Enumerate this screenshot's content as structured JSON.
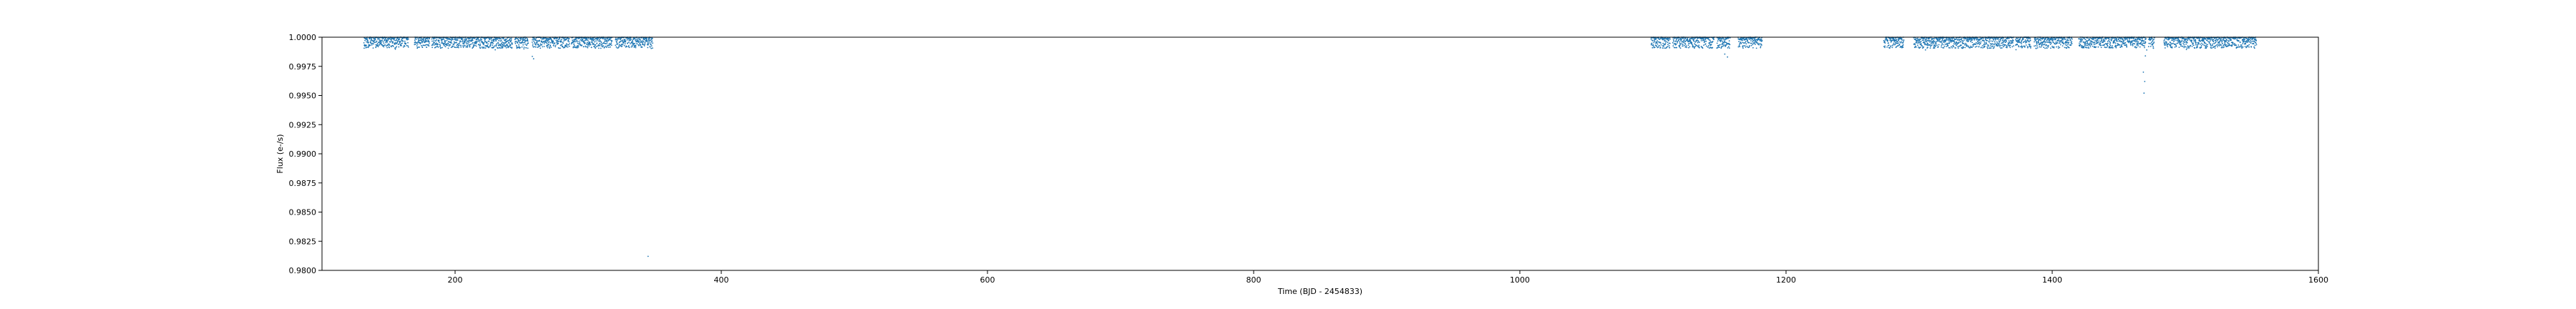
{
  "chart_data": {
    "type": "scatter",
    "title": "",
    "xlabel": "Time (BJD - 2454833)",
    "ylabel": "Flux (e-/s)",
    "xlim": [
      100,
      1600
    ],
    "ylim": [
      0.98,
      1.0
    ],
    "xticks": [
      200,
      400,
      600,
      800,
      1000,
      1200,
      1400,
      1600
    ],
    "xtick_labels": [
      "200",
      "400",
      "600",
      "800",
      "1000",
      "1200",
      "1400",
      "1600"
    ],
    "yticks": [
      0.98,
      0.9825,
      0.985,
      0.9875,
      0.99,
      0.9925,
      0.995,
      0.9975,
      1.0
    ],
    "ytick_labels": [
      "0.9800",
      "0.9825",
      "0.9850",
      "0.9875",
      "0.9900",
      "0.9925",
      "0.9950",
      "0.9975",
      "1.0000"
    ],
    "grid": false,
    "legend": "none",
    "marker_color": "#1f77b4",
    "observation_segments": [
      [
        131.5,
        165.0
      ],
      [
        169.5,
        181.0
      ],
      [
        182.5,
        243.0
      ],
      [
        245.0,
        255.0
      ],
      [
        258.0,
        286.0
      ],
      [
        287.5,
        318.0
      ],
      [
        320.5,
        348.5
      ],
      [
        1098.5,
        1113.0
      ],
      [
        1115.0,
        1146.0
      ],
      [
        1148.0,
        1158.0
      ],
      [
        1164.0,
        1182.0
      ],
      [
        1273.5,
        1288.5
      ],
      [
        1296.0,
        1371.0
      ],
      [
        1372.5,
        1384.0
      ],
      [
        1386.5,
        1415.0
      ],
      [
        1420.0,
        1470.5
      ],
      [
        1472.5,
        1477.0
      ],
      [
        1484.0,
        1553.5
      ]
    ],
    "typical_flux_range": [
      0.99905,
      1.0
    ],
    "notable_points": [
      {
        "x": 258.0,
        "y": 0.99835
      },
      {
        "x": 259.0,
        "y": 0.99815
      },
      {
        "x": 1154.0,
        "y": 0.99855
      },
      {
        "x": 1156.0,
        "y": 0.9983
      },
      {
        "x": 1468.5,
        "y": 0.997
      },
      {
        "x": 1469.0,
        "y": 0.9952
      },
      {
        "x": 1469.5,
        "y": 0.9962
      },
      {
        "x": 1470.0,
        "y": 0.9984
      },
      {
        "x": 1471.0,
        "y": 0.9989
      },
      {
        "x": 345.0,
        "y": 0.9812
      }
    ]
  }
}
